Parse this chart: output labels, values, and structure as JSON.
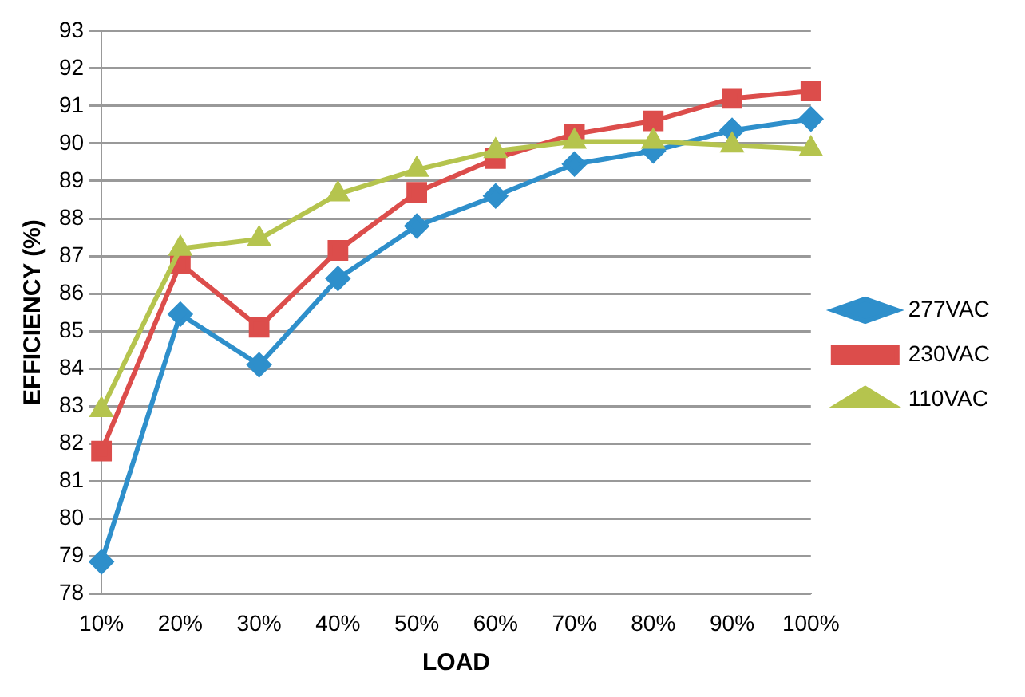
{
  "chart_data": {
    "type": "line",
    "xlabel": "LOAD",
    "ylabel": "EFFICIENCY (%)",
    "categories": [
      "10%",
      "20%",
      "30%",
      "40%",
      "50%",
      "60%",
      "70%",
      "80%",
      "90%",
      "100%"
    ],
    "series": [
      {
        "name": "277VAC",
        "color": "#2e8fcb",
        "marker": "diamond",
        "values": [
          78.85,
          85.45,
          84.1,
          86.4,
          87.8,
          88.6,
          89.45,
          89.8,
          90.35,
          90.65
        ]
      },
      {
        "name": "230VAC",
        "color": "#dc4d4b",
        "marker": "square",
        "values": [
          81.8,
          86.8,
          85.1,
          87.15,
          88.7,
          89.6,
          90.25,
          90.6,
          91.2,
          91.4
        ]
      },
      {
        "name": "110VAC",
        "color": "#b5c44e",
        "marker": "triangle",
        "values": [
          82.9,
          87.2,
          87.45,
          88.65,
          89.3,
          89.8,
          90.05,
          90.05,
          89.95,
          89.85
        ]
      }
    ],
    "ylim": [
      78,
      93
    ],
    "yticks": [
      78,
      79,
      80,
      81,
      82,
      83,
      84,
      85,
      86,
      87,
      88,
      89,
      90,
      91,
      92,
      93
    ],
    "grid": "y",
    "legend": "right"
  }
}
